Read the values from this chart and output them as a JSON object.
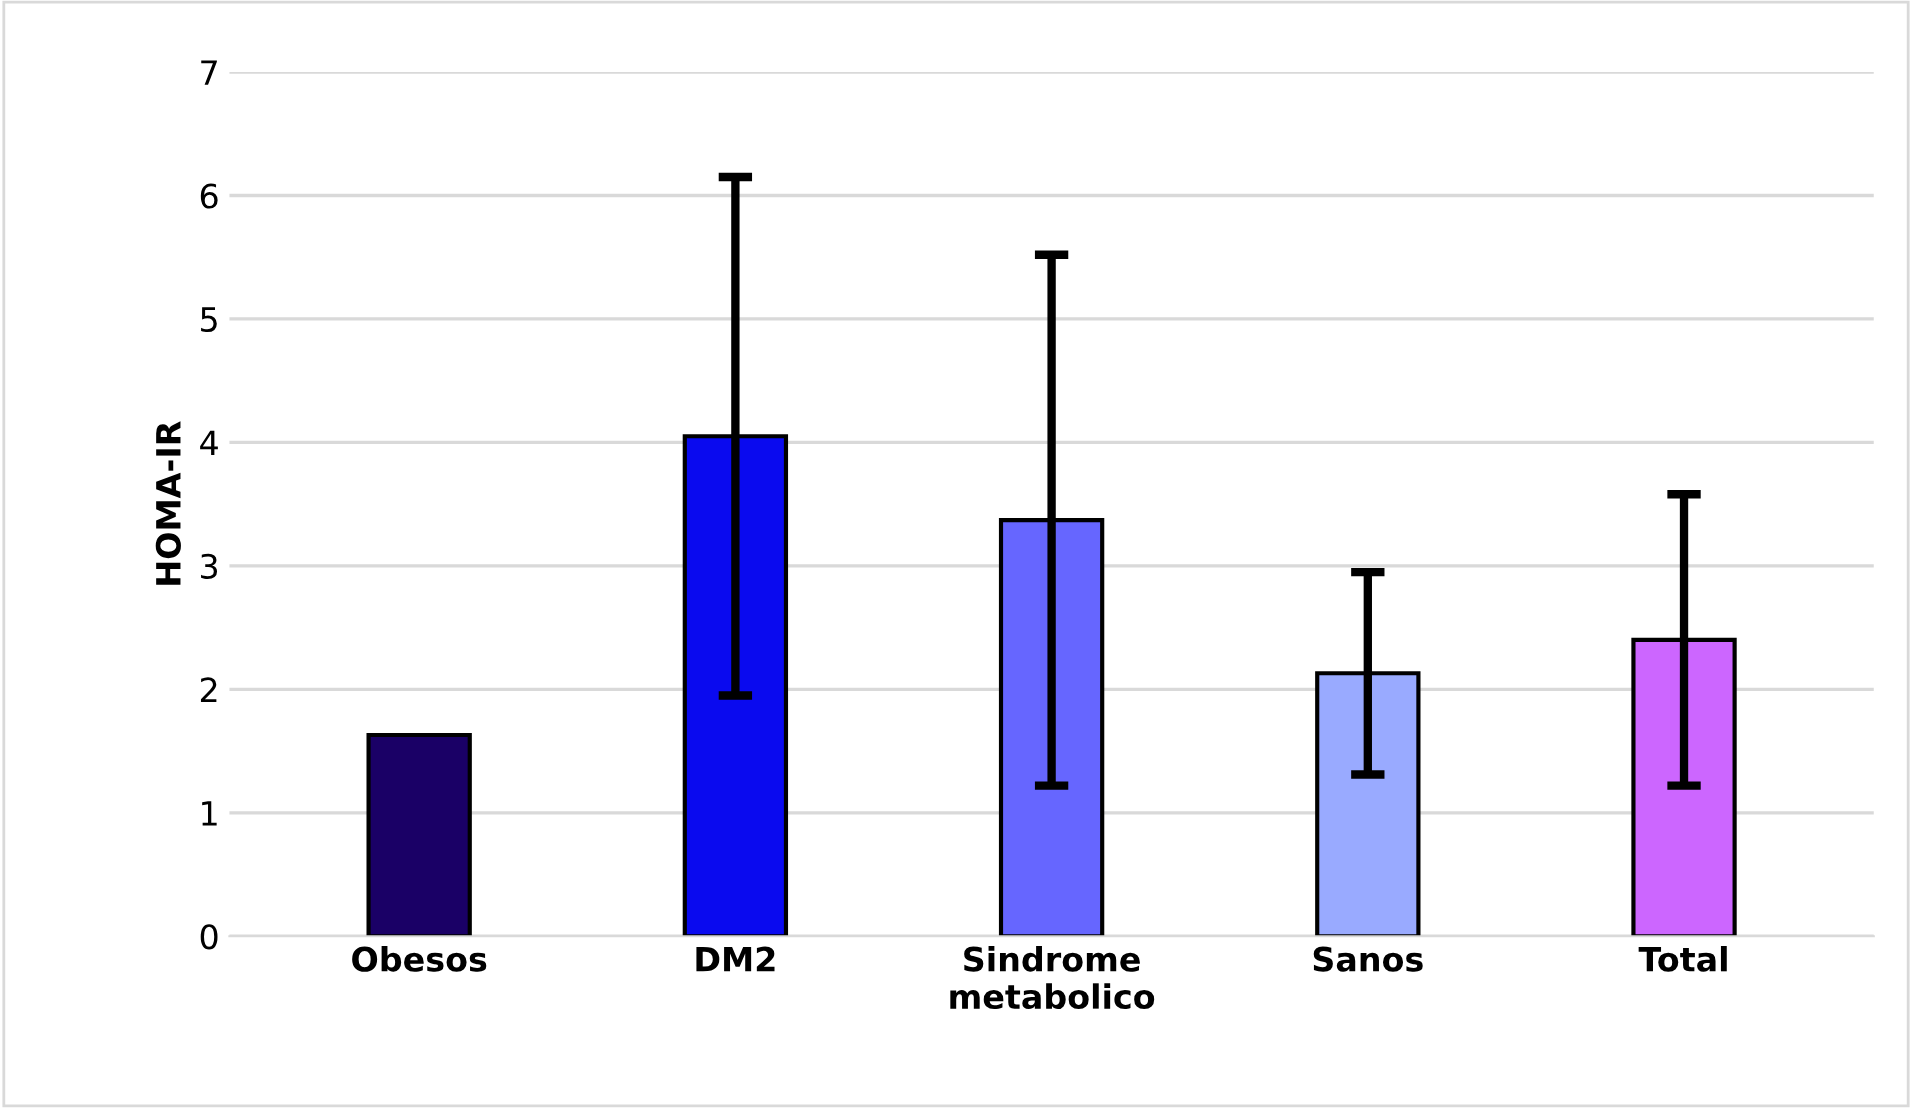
{
  "chart_data": {
    "type": "bar",
    "ylabel": "HOMA-IR",
    "categories": [
      "Obesos",
      "DM2",
      "Sindrome\nmetabolico",
      "Sanos",
      "Total"
    ],
    "values": [
      1.63,
      4.05,
      3.37,
      2.13,
      2.4
    ],
    "errors": [
      null,
      2.1,
      2.15,
      0.82,
      1.18
    ],
    "colors": [
      "#1a0066",
      "#0a0aef",
      "#6666ff",
      "#99aaff",
      "#cc66ff"
    ],
    "ylim": [
      0,
      7
    ],
    "yticks": [
      0,
      1,
      2,
      3,
      4,
      5,
      6,
      7
    ],
    "grid": "y"
  }
}
